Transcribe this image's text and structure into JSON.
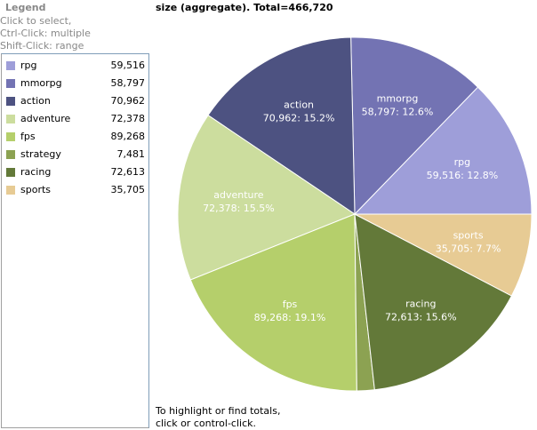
{
  "legend": {
    "title": "Legend",
    "help": [
      "Click to select,",
      "Ctrl-Click: multiple",
      "Shift-Click: range"
    ]
  },
  "chart_title": "size (aggregate). Total=466,720",
  "footer": [
    "To highlight or find totals,",
    "click or control-click."
  ],
  "chart_data": {
    "type": "pie",
    "title": "size (aggregate). Total=466,720",
    "total": 466720,
    "slices": [
      {
        "name": "rpg",
        "value": 59516,
        "value_label": "59,516",
        "percent_label": "12.8%",
        "color": "#9e9ed9"
      },
      {
        "name": "mmorpg",
        "value": 58797,
        "value_label": "58,797",
        "percent_label": "12.6%",
        "color": "#7373b3"
      },
      {
        "name": "action",
        "value": 70962,
        "value_label": "70,962",
        "percent_label": "15.2%",
        "color": "#4d5281"
      },
      {
        "name": "adventure",
        "value": 72378,
        "value_label": "72,378",
        "percent_label": "15.5%",
        "color": "#ccdd9e"
      },
      {
        "name": "fps",
        "value": 89268,
        "value_label": "89,268",
        "percent_label": "19.1%",
        "color": "#b5cf6b"
      },
      {
        "name": "strategy",
        "value": 7481,
        "value_label": "7,481",
        "percent_label": "",
        "color": "#8ca252"
      },
      {
        "name": "racing",
        "value": 72613,
        "value_label": "72,613",
        "percent_label": "15.6%",
        "color": "#637939"
      },
      {
        "name": "sports",
        "value": 35705,
        "value_label": "35,705",
        "percent_label": "7.7%",
        "color": "#e7cb94"
      }
    ]
  }
}
